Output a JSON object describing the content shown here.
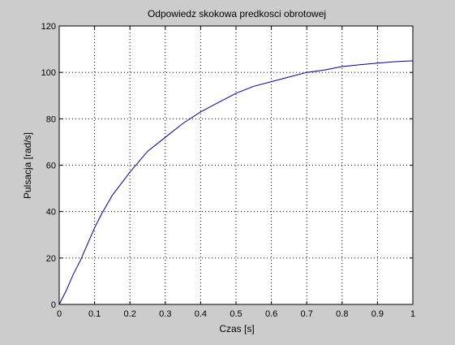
{
  "chart_data": {
    "type": "line",
    "title": "Odpowiedz skokowa predkosci obrotowej",
    "xlabel": "Czas [s]",
    "ylabel": "Pulsacja [rad/s]",
    "xlim": [
      0,
      1
    ],
    "ylim": [
      0,
      120
    ],
    "xticks": [
      0,
      0.1,
      0.2,
      0.3,
      0.4,
      0.5,
      0.6,
      0.7,
      0.8,
      0.9,
      1
    ],
    "xtick_labels": [
      "0",
      "0.1",
      "0.2",
      "0.3",
      "0.4",
      "0.5",
      "0.6",
      "0.7",
      "0.8",
      "0.9",
      "1"
    ],
    "yticks": [
      0,
      20,
      40,
      60,
      80,
      100,
      120
    ],
    "ytick_labels": [
      "0",
      "20",
      "40",
      "60",
      "80",
      "100",
      "120"
    ],
    "grid": true,
    "colors": {
      "figure_bg": "#cccccc",
      "axes_bg": "#ffffff",
      "line": "#00007f",
      "grid": "#000000"
    },
    "series": [
      {
        "x": [
          0,
          0.02,
          0.04,
          0.06,
          0.08,
          0.1,
          0.12,
          0.15,
          0.2,
          0.25,
          0.3,
          0.35,
          0.4,
          0.45,
          0.5,
          0.55,
          0.6,
          0.65,
          0.7,
          0.75,
          0.8,
          0.85,
          0.9,
          0.95,
          1.0
        ],
        "y": [
          0,
          6,
          13,
          19,
          26,
          33,
          39,
          47,
          57,
          66,
          72,
          78,
          83,
          87,
          91,
          94,
          96,
          98,
          100,
          101,
          102.5,
          103.3,
          104,
          104.6,
          105
        ]
      }
    ]
  }
}
